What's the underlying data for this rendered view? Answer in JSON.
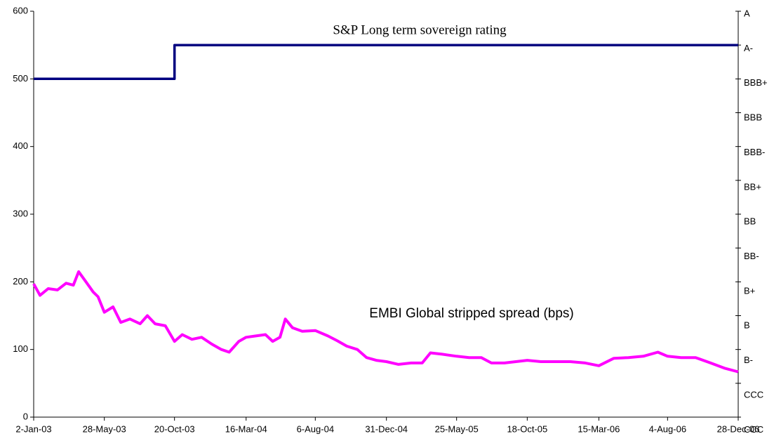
{
  "chart_data": {
    "type": "line",
    "annotations": [
      "S&P Long term sovereign rating",
      "EMBI Global stripped spread (bps)"
    ],
    "xlim": [
      "2-Jan-03",
      "28-Dec-06"
    ],
    "xticks": [
      "2-Jan-03",
      "28-May-03",
      "20-Oct-03",
      "16-Mar-04",
      "6-Aug-04",
      "31-Dec-04",
      "25-May-05",
      "18-Oct-05",
      "15-Mar-06",
      "4-Aug-06",
      "28-Dec-06"
    ],
    "ylim": [
      0,
      600
    ],
    "yticks": [
      0,
      100,
      200,
      300,
      400,
      500,
      600
    ],
    "y2lim": [
      0,
      12
    ],
    "y2ticks": [
      {
        "value": 0,
        "label": "CCC"
      },
      {
        "value": 1,
        "label": "CCC"
      },
      {
        "value": 2,
        "label": "B-"
      },
      {
        "value": 3,
        "label": "B"
      },
      {
        "value": 4,
        "label": "B+"
      },
      {
        "value": 5,
        "label": "BB-"
      },
      {
        "value": 6,
        "label": "BB"
      },
      {
        "value": 7,
        "label": "BB+"
      },
      {
        "value": 8,
        "label": "BBB-"
      },
      {
        "value": 9,
        "label": "BBB"
      },
      {
        "value": 10,
        "label": "BBB+"
      },
      {
        "value": 11,
        "label": "A-"
      },
      {
        "value": 12,
        "label": "A"
      }
    ],
    "series": [
      {
        "color": "#ff00ff",
        "x": [
          "2-Jan-03",
          "15-Jan-03",
          "1-Feb-03",
          "20-Feb-03",
          "10-Mar-03",
          "25-Mar-03",
          "5-Apr-03",
          "20-Apr-03",
          "5-May-03",
          "15-May-03",
          "28-May-03",
          "15-Jun-03",
          "1-Jul-03",
          "20-Jul-03",
          "10-Aug-03",
          "25-Aug-03",
          "10-Sep-03",
          "1-Oct-03",
          "20-Oct-03",
          "5-Nov-03",
          "25-Nov-03",
          "15-Dec-03",
          "5-Jan-04",
          "25-Jan-04",
          "10-Feb-04",
          "1-Mar-04",
          "16-Mar-04",
          "5-Apr-04",
          "25-Apr-04",
          "10-May-04",
          "25-May-04",
          "5-Jun-04",
          "20-Jun-04",
          "10-Jul-04",
          "6-Aug-04",
          "1-Sep-04",
          "20-Sep-04",
          "10-Oct-04",
          "1-Nov-04",
          "20-Nov-04",
          "10-Dec-04",
          "31-Dec-04",
          "25-Jan-05",
          "20-Feb-05",
          "15-Mar-05",
          "1-Apr-05",
          "25-Apr-05",
          "25-May-05",
          "20-Jun-05",
          "15-Jul-05",
          "5-Aug-05",
          "1-Sep-05",
          "18-Oct-05",
          "15-Nov-05",
          "15-Dec-05",
          "15-Jan-06",
          "15-Feb-06",
          "15-Mar-06",
          "15-Apr-06",
          "15-May-06",
          "15-Jun-06",
          "15-Jul-06",
          "4-Aug-06",
          "1-Sep-06",
          "1-Oct-06",
          "1-Nov-06",
          "1-Dec-06",
          "28-Dec-06"
        ],
        "values": [
          197,
          180,
          190,
          188,
          198,
          195,
          215,
          200,
          185,
          178,
          155,
          163,
          140,
          145,
          138,
          150,
          138,
          135,
          112,
          122,
          115,
          118,
          108,
          100,
          96,
          112,
          118,
          120,
          122,
          112,
          118,
          145,
          132,
          127,
          128,
          120,
          113,
          105,
          100,
          88,
          84,
          82,
          78,
          80,
          80,
          95,
          93,
          90,
          88,
          88,
          80,
          80,
          84,
          82,
          82,
          82,
          80,
          76,
          87,
          88,
          90,
          96,
          90,
          88,
          88,
          80,
          72,
          67
        ]
      },
      {
        "color": "#000080",
        "axis": "y2",
        "x": [
          "2-Jan-03",
          "20-Oct-03",
          "20-Oct-03",
          "28-Dec-06"
        ],
        "values": [
          10,
          10,
          11,
          11
        ]
      }
    ]
  }
}
